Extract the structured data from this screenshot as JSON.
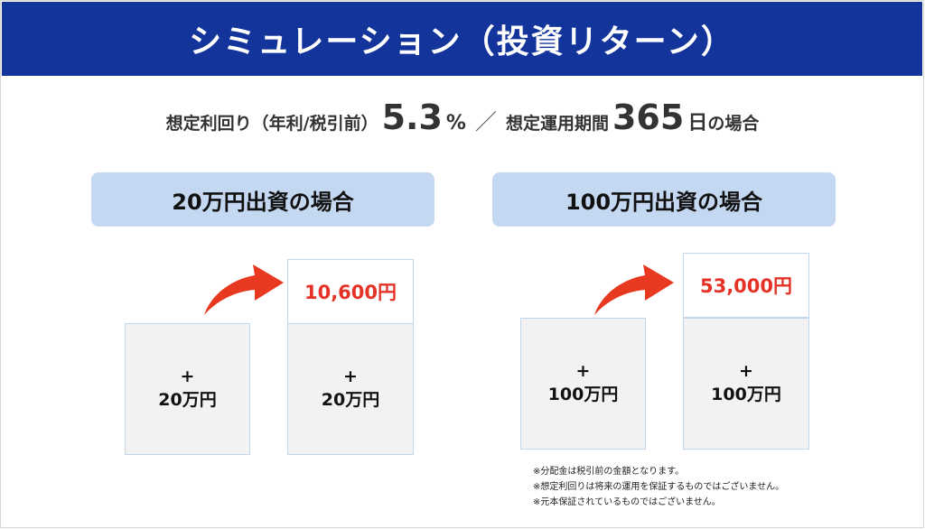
{
  "header": {
    "title": "シミュレーション（投資リターン）"
  },
  "subtitle": {
    "rate_label": "想定利回り（年利/税引前）",
    "rate_value": "5.3",
    "rate_unit": "%",
    "separator": "／",
    "period_label": "想定運用期間",
    "period_value": "365",
    "period_unit": "日",
    "suffix": "の場合"
  },
  "scenarios": [
    {
      "title": "20万円出資の場合",
      "initial_plus": "+",
      "initial_amount": "20万円",
      "gain": "10,600円",
      "final_plus": "+",
      "final_amount": "20万円"
    },
    {
      "title": "100万円出資の場合",
      "initial_plus": "+",
      "initial_amount": "100万円",
      "gain": "53,000円",
      "final_plus": "+",
      "final_amount": "100万円"
    }
  ],
  "notes": [
    "※分配金は税引前の金額となります。",
    "※想定利回りは将来の運用を保証するものではございません。",
    "※元本保証されているものではございません。"
  ],
  "colors": {
    "header_bg": "#12349b",
    "pill_bg": "#c5d8f2",
    "gain_text": "#e53227",
    "arrow": "#e8381f"
  },
  "icons": {
    "growth_arrow": "curved-arrow-icon"
  }
}
